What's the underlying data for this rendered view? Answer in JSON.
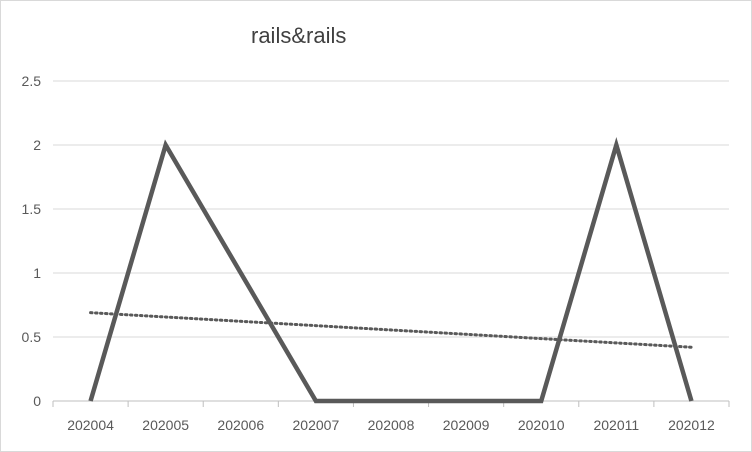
{
  "chart_data": {
    "type": "line",
    "title": "rails&rails",
    "categories": [
      "202004",
      "202005",
      "202006",
      "202007",
      "202008",
      "202009",
      "202010",
      "202011",
      "202012"
    ],
    "series": [
      {
        "values": [
          0,
          2,
          1,
          0,
          0,
          0,
          0,
          2,
          0
        ],
        "color": "#595959",
        "style": "solid"
      }
    ],
    "trendline": {
      "type": "linear",
      "style": "dotted",
      "color": "#595959",
      "start": 0.69,
      "end": 0.42
    },
    "yticks": [
      "0",
      "0.5",
      "1",
      "1.5",
      "2",
      "2.5"
    ],
    "ylim": [
      0,
      2.5
    ],
    "grid": true,
    "legend": "none",
    "xlabel": "",
    "ylabel": ""
  }
}
